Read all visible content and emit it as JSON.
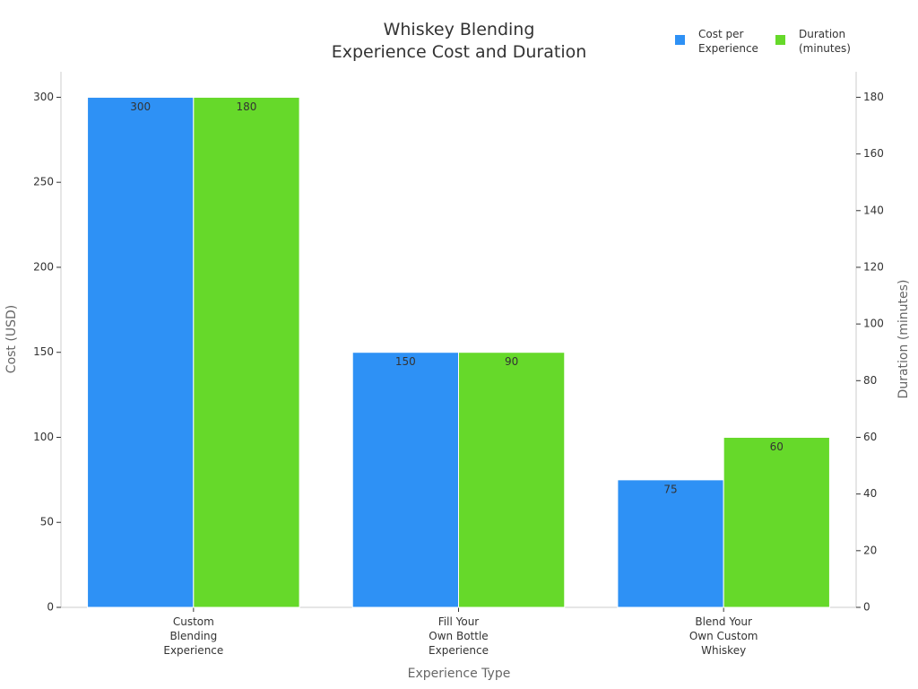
{
  "chart_data": {
    "type": "bar",
    "title": "Whiskey Blending\nExperience Cost and Duration",
    "x_label": "Experience Type",
    "y_label": "Cost (USD)",
    "y2_label": "Duration (minutes)",
    "categories": [
      "Custom\nBlending\nExperience",
      "Fill Your\nOwn Bottle\nExperience",
      "Blend Your\nOwn Custom\nWhiskey"
    ],
    "series": [
      {
        "name": "Cost per\nExperience",
        "color": "#2e91f5",
        "values": [
          300,
          150,
          75
        ]
      },
      {
        "name": "Duration\n(minutes)",
        "color": "#66d92a",
        "values": [
          180,
          90,
          60
        ],
        "axis": "y2"
      }
    ],
    "ylim": [
      0,
      315
    ],
    "yticks": [
      0,
      50,
      100,
      150,
      200,
      250,
      300
    ],
    "y2lim": [
      0,
      189
    ],
    "y2ticks": [
      0,
      20,
      40,
      60,
      80,
      100,
      120,
      140,
      160,
      180
    ],
    "legend": "top-right",
    "grid": false
  }
}
